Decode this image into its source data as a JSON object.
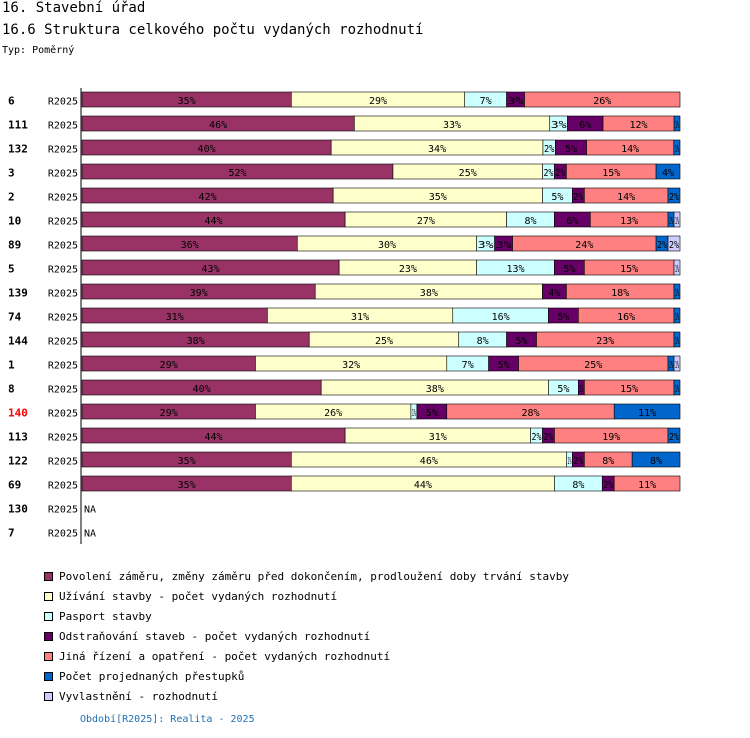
{
  "header": {
    "title": "16. Stavební úřad",
    "subtitle": "16.6 Struktura celkového počtu vydaných rozhodnutí",
    "type_label": "Typ: Poměrný"
  },
  "footer": {
    "period": "Období[R2025]: Realita - 2025"
  },
  "chart_data": {
    "type": "bar",
    "orientation": "horizontal",
    "stacked": "percent",
    "period_label": "R2025",
    "highlight_category": "140",
    "categories": [
      "6",
      "111",
      "132",
      "3",
      "2",
      "10",
      "89",
      "5",
      "139",
      "74",
      "144",
      "1",
      "8",
      "140",
      "113",
      "122",
      "69",
      "130",
      "7"
    ],
    "series": [
      {
        "name": "Povolení záměru,  změny záměru před dokončením, prodloužení doby trvání stavby",
        "color": "#993366",
        "values": [
          35,
          46,
          40,
          52,
          42,
          44,
          36,
          43,
          39,
          31,
          38,
          29,
          40,
          29,
          44,
          35,
          35,
          null,
          null
        ],
        "labels": [
          "35%",
          "46%",
          "40%",
          "52%",
          "42%",
          "44%",
          "36%",
          "43%",
          "39%",
          "31%",
          "38%",
          "29%",
          "40%",
          "29%",
          "44%",
          "35%",
          "35%",
          "",
          ""
        ]
      },
      {
        "name": "Užívání stavby - počet vydaných rozhodnutí",
        "color": "#ffffcc",
        "values": [
          29,
          33,
          34,
          25,
          35,
          27,
          30,
          23,
          38,
          31,
          25,
          32,
          38,
          26,
          31,
          46,
          44,
          null,
          null
        ],
        "labels": [
          "29%",
          "33%",
          "34%",
          "25%",
          "35%",
          "27%",
          "30%",
          "23%",
          "38%",
          "31%",
          "25%",
          "32%",
          "38%",
          "26%",
          "31%",
          "46%",
          "44%",
          "",
          ""
        ]
      },
      {
        "name": "Pasport stavby",
        "color": "#ccffff",
        "values": [
          7,
          3,
          2,
          2,
          5,
          8,
          3,
          13,
          0,
          16,
          8,
          7,
          5,
          1,
          2,
          1,
          8,
          null,
          null
        ],
        "labels": [
          "7%",
          "3%",
          "2%",
          "2%",
          "5%",
          "8%",
          "3%",
          "13%",
          "",
          "16%",
          "8%",
          "7%",
          "5%",
          "1%",
          "2%",
          "1%",
          "8%",
          "",
          ""
        ]
      },
      {
        "name": "Odstraňování staveb - počet vydaných rozhodnutí",
        "color": "#660066",
        "values": [
          3,
          6,
          5,
          2,
          2,
          6,
          3,
          5,
          4,
          5,
          5,
          5,
          1,
          5,
          2,
          2,
          2,
          null,
          null
        ],
        "labels": [
          "3%",
          "6%",
          "5%",
          "2%",
          "2%",
          "6%",
          "3%",
          "5%",
          "4%",
          "5%",
          "5%",
          "5%",
          "1%",
          "5%",
          "2%",
          "2%",
          "2%",
          "",
          ""
        ]
      },
      {
        "name": "Jiná řízení a opatření - počet vydaných rozhodnutí",
        "color": "#ff8080",
        "values": [
          26,
          12,
          14,
          15,
          14,
          13,
          24,
          15,
          18,
          16,
          23,
          25,
          15,
          28,
          19,
          8,
          11,
          null,
          null
        ],
        "labels": [
          "26%",
          "12%",
          "14%",
          "15%",
          "14%",
          "13%",
          "24%",
          "15%",
          "18%",
          "16%",
          "23%",
          "25%",
          "15%",
          "28%",
          "19%",
          "8%",
          "11%",
          "",
          ""
        ]
      },
      {
        "name": "Počet projednaných přestupků",
        "color": "#0066cc",
        "values": [
          0,
          1,
          1,
          4,
          2,
          1,
          2,
          0,
          1,
          1,
          1,
          1,
          1,
          11,
          2,
          8,
          0,
          null,
          null
        ],
        "labels": [
          "",
          "1%",
          "1%",
          "4%",
          "2%",
          "1%",
          "2%",
          "",
          "1%",
          "1%",
          "1%",
          "1%",
          "1%",
          "11%",
          "2%",
          "8%",
          "",
          "",
          ""
        ]
      },
      {
        "name": "Vyvlastnění - rozhodnutí",
        "color": "#ccccff",
        "values": [
          0,
          0,
          0,
          0,
          0,
          1,
          2,
          1,
          0,
          0,
          0,
          1,
          0,
          0,
          0,
          0,
          0,
          null,
          null
        ],
        "labels": [
          "",
          "",
          "",
          "",
          "",
          "1%",
          "2%",
          "1%",
          "",
          "",
          "",
          "1%",
          "",
          "",
          "",
          "",
          "",
          "",
          ""
        ]
      }
    ],
    "na_label": "NA",
    "xlim": [
      0,
      100
    ]
  }
}
